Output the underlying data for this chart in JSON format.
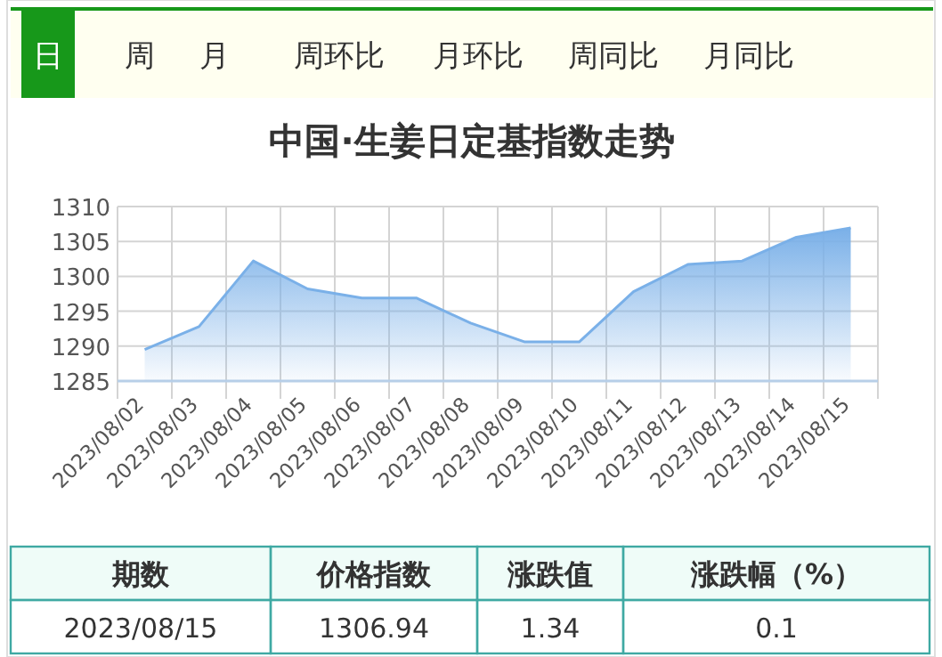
{
  "chart_data": {
    "type": "area",
    "title": "中国·生姜日定基指数走势",
    "categories": [
      "2023/08/02",
      "2023/08/03",
      "2023/08/04",
      "2023/08/05",
      "2023/08/06",
      "2023/08/07",
      "2023/08/08",
      "2023/08/09",
      "2023/08/10",
      "2023/08/11",
      "2023/08/12",
      "2023/08/13",
      "2023/08/14",
      "2023/08/15"
    ],
    "series": [
      {
        "color": "#7ab0e8",
        "values": [
          1289.5,
          1292.8,
          1302.2,
          1298.2,
          1296.9,
          1296.9,
          1293.3,
          1290.6,
          1290.6,
          1297.8,
          1301.7,
          1302.2,
          1305.6,
          1306.94
        ]
      }
    ],
    "ylim": [
      1285,
      1310
    ],
    "yticks": [
      1285,
      1290,
      1295,
      1300,
      1305,
      1310
    ],
    "grid": true,
    "annotations": [
      "日",
      "周",
      "月",
      "周环比",
      "月环比",
      "周同比",
      "月同比",
      "期数",
      "价格指数",
      "涨跌值",
      "涨跌幅（%）",
      "2023/08/15",
      "1306.94",
      "1.34",
      "0.1"
    ]
  }
}
